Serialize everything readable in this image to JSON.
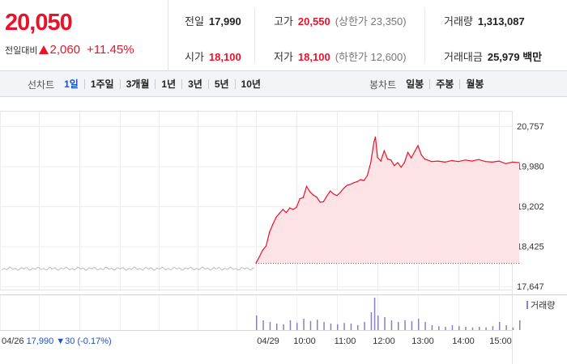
{
  "price": {
    "current": "20,050",
    "change_label": "전일대비",
    "change_amount": "2,060",
    "change_percent": "+11.45%",
    "color_up": "#e8132b"
  },
  "stats": {
    "prev_close": {
      "label": "전일",
      "value": "17,990"
    },
    "high": {
      "label": "고가",
      "value": "20,550",
      "sub": "(상한가 23,350)"
    },
    "volume": {
      "label": "거래량",
      "value": "1,313,087"
    },
    "open": {
      "label": "시가",
      "value": "18,100"
    },
    "low": {
      "label": "저가",
      "value": "18,100",
      "sub": "(하한가 12,600)"
    },
    "amount": {
      "label": "거래대금",
      "value": "25,979 백만"
    }
  },
  "tabs": {
    "line_label": "선차트",
    "line_items": [
      "1일",
      "1주일",
      "3개월",
      "1년",
      "3년",
      "5년",
      "10년"
    ],
    "line_active": "1일",
    "candle_label": "봉차트",
    "candle_items": [
      "일봉",
      "주봉",
      "월봉"
    ],
    "active_color": "#1a50c8"
  },
  "chart_data": {
    "type": "line",
    "y_ticks": [
      "20,757",
      "19,980",
      "19,202",
      "18,425",
      "17,647"
    ],
    "y_tick_values": [
      20757,
      19980,
      19202,
      18425,
      17647
    ],
    "ylim": [
      17647,
      20757
    ],
    "x_ticks": [
      "04/29",
      "10:00",
      "11:00",
      "12:00",
      "13:00",
      "14:00",
      "15:00"
    ],
    "previous_day": {
      "date": "04/26",
      "close": "17,990",
      "change": "30",
      "change_pct": "(-0.17%)",
      "value": 17990,
      "color": "#bbbbbb"
    },
    "today_series": {
      "color": "#e8132b",
      "fill": "#fde3e5",
      "open": 18100,
      "points": [
        [
          "09:00",
          18100
        ],
        [
          "09:05",
          18220
        ],
        [
          "09:10",
          18350
        ],
        [
          "09:15",
          18430
        ],
        [
          "09:20",
          18700
        ],
        [
          "09:25",
          18850
        ],
        [
          "09:30",
          18990
        ],
        [
          "09:35",
          19070
        ],
        [
          "09:40",
          19140
        ],
        [
          "09:45",
          19080
        ],
        [
          "09:50",
          19170
        ],
        [
          "09:55",
          19140
        ],
        [
          "10:00",
          19180
        ],
        [
          "10:05",
          19350
        ],
        [
          "10:10",
          19370
        ],
        [
          "10:15",
          19590
        ],
        [
          "10:20",
          19480
        ],
        [
          "10:25",
          19420
        ],
        [
          "10:30",
          19380
        ],
        [
          "10:35",
          19280
        ],
        [
          "10:40",
          19290
        ],
        [
          "10:45",
          19400
        ],
        [
          "10:50",
          19500
        ],
        [
          "10:55",
          19440
        ],
        [
          "11:00",
          19410
        ],
        [
          "11:05",
          19470
        ],
        [
          "11:10",
          19550
        ],
        [
          "11:15",
          19610
        ],
        [
          "11:20",
          19630
        ],
        [
          "11:25",
          19660
        ],
        [
          "11:30",
          19680
        ],
        [
          "11:35",
          19720
        ],
        [
          "11:40",
          19700
        ],
        [
          "11:45",
          19800
        ],
        [
          "11:50",
          20050
        ],
        [
          "11:55",
          20460
        ],
        [
          "11:57",
          20550
        ],
        [
          "12:00",
          20150
        ],
        [
          "12:05",
          20080
        ],
        [
          "12:10",
          20280
        ],
        [
          "12:15",
          20120
        ],
        [
          "12:20",
          20100
        ],
        [
          "12:25",
          19990
        ],
        [
          "12:30",
          20050
        ],
        [
          "12:35",
          19960
        ],
        [
          "12:40",
          20050
        ],
        [
          "12:45",
          20250
        ],
        [
          "12:50",
          20140
        ],
        [
          "12:55",
          20260
        ],
        [
          "13:00",
          20380
        ],
        [
          "13:05",
          20200
        ],
        [
          "13:10",
          20120
        ],
        [
          "13:20",
          20070
        ],
        [
          "13:30",
          20080
        ],
        [
          "13:40",
          20060
        ],
        [
          "13:50",
          20090
        ],
        [
          "14:00",
          20070
        ],
        [
          "14:10",
          20100
        ],
        [
          "14:20",
          20080
        ],
        [
          "14:30",
          20110
        ],
        [
          "14:40",
          20070
        ],
        [
          "14:50",
          20060
        ],
        [
          "15:00",
          20080
        ],
        [
          "15:10",
          20030
        ],
        [
          "15:20",
          20060
        ],
        [
          "15:30",
          20050
        ]
      ]
    },
    "volume_label": "거래량",
    "volume_color": "#8a7fbf",
    "volume": [
      [
        "09:00",
        0.45
      ],
      [
        "09:10",
        0.3
      ],
      [
        "09:20",
        0.25
      ],
      [
        "09:30",
        0.2
      ],
      [
        "09:40",
        0.18
      ],
      [
        "09:50",
        0.3
      ],
      [
        "10:00",
        0.22
      ],
      [
        "10:10",
        0.35
      ],
      [
        "10:20",
        0.28
      ],
      [
        "10:30",
        0.32
      ],
      [
        "10:40",
        0.25
      ],
      [
        "10:50",
        0.2
      ],
      [
        "11:00",
        0.18
      ],
      [
        "11:10",
        0.22
      ],
      [
        "11:20",
        0.2
      ],
      [
        "11:30",
        0.15
      ],
      [
        "11:40",
        0.25
      ],
      [
        "11:50",
        0.55
      ],
      [
        "11:55",
        1.0
      ],
      [
        "12:00",
        0.45
      ],
      [
        "12:10",
        0.4
      ],
      [
        "12:20",
        0.3
      ],
      [
        "12:30",
        0.25
      ],
      [
        "12:40",
        0.3
      ],
      [
        "12:50",
        0.28
      ],
      [
        "13:00",
        0.35
      ],
      [
        "13:10",
        0.25
      ],
      [
        "13:20",
        0.15
      ],
      [
        "13:30",
        0.12
      ],
      [
        "13:40",
        0.1
      ],
      [
        "13:50",
        0.15
      ],
      [
        "14:00",
        0.12
      ],
      [
        "14:10",
        0.1
      ],
      [
        "14:20",
        0.08
      ],
      [
        "14:30",
        0.1
      ],
      [
        "14:40",
        0.08
      ],
      [
        "14:50",
        0.12
      ],
      [
        "15:00",
        0.25
      ],
      [
        "15:10",
        0.15
      ],
      [
        "15:20",
        0.08
      ],
      [
        "15:30",
        0.3
      ]
    ],
    "grid": true
  }
}
